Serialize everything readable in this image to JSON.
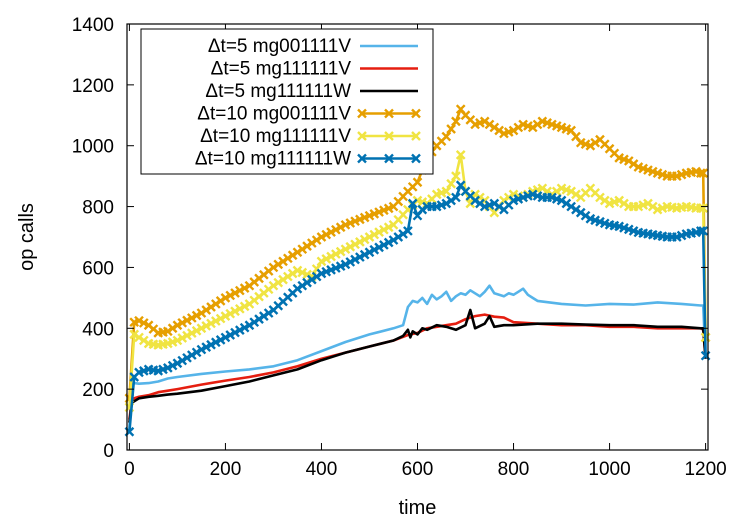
{
  "chart_data": {
    "type": "line",
    "title": "",
    "xlabel": "time",
    "ylabel": "op calls",
    "xlim": [
      -5,
      1205
    ],
    "ylim": [
      0,
      1400
    ],
    "xticks": [
      0,
      200,
      400,
      600,
      800,
      1000,
      1200
    ],
    "yticks": [
      0,
      200,
      400,
      600,
      800,
      1000,
      1200,
      1400
    ],
    "grid": false,
    "legend_position": "top-left",
    "series": [
      {
        "name": "Δt=5 mg001111V",
        "color": "#56b4e9",
        "marker": "none",
        "x": [
          0,
          2,
          5,
          10,
          20,
          40,
          60,
          80,
          100,
          150,
          200,
          250,
          300,
          350,
          400,
          450,
          500,
          550,
          570,
          580,
          590,
          600,
          610,
          620,
          630,
          640,
          650,
          660,
          670,
          680,
          690,
          700,
          710,
          720,
          730,
          740,
          750,
          760,
          770,
          780,
          790,
          800,
          810,
          820,
          830,
          840,
          850,
          900,
          950,
          1000,
          1050,
          1100,
          1150,
          1190,
          1195,
          1200
        ],
        "y": [
          70,
          120,
          215,
          220,
          218,
          220,
          225,
          235,
          240,
          250,
          258,
          265,
          275,
          295,
          325,
          355,
          380,
          400,
          410,
          470,
          490,
          485,
          500,
          480,
          510,
          495,
          505,
          520,
          490,
          505,
          515,
          510,
          525,
          515,
          505,
          520,
          540,
          515,
          510,
          505,
          515,
          510,
          520,
          530,
          510,
          500,
          490,
          480,
          475,
          480,
          478,
          485,
          480,
          475,
          475,
          300
        ]
      },
      {
        "name": "Δt=5 mg111111V",
        "color": "#e51e10",
        "marker": "none",
        "x": [
          0,
          5,
          10,
          20,
          40,
          60,
          80,
          100,
          150,
          200,
          250,
          300,
          350,
          400,
          450,
          500,
          550,
          580,
          600,
          620,
          640,
          660,
          680,
          700,
          720,
          740,
          760,
          780,
          800,
          850,
          900,
          950,
          1000,
          1050,
          1100,
          1150,
          1190,
          1195,
          1200
        ],
        "y": [
          100,
          160,
          170,
          175,
          180,
          190,
          195,
          200,
          215,
          228,
          240,
          255,
          275,
          300,
          320,
          340,
          360,
          378,
          385,
          400,
          405,
          410,
          415,
          430,
          440,
          445,
          438,
          435,
          420,
          415,
          410,
          410,
          405,
          405,
          400,
          400,
          400,
          395,
          300
        ]
      },
      {
        "name": "Δt=5 mg111111W",
        "color": "#000000",
        "marker": "none",
        "x": [
          0,
          5,
          10,
          20,
          40,
          60,
          80,
          100,
          150,
          200,
          250,
          300,
          350,
          400,
          450,
          500,
          550,
          570,
          580,
          585,
          590,
          600,
          610,
          620,
          640,
          660,
          680,
          700,
          710,
          720,
          740,
          750,
          760,
          780,
          800,
          850,
          900,
          950,
          1000,
          1050,
          1100,
          1150,
          1190,
          1195,
          1200
        ],
        "y": [
          90,
          155,
          160,
          170,
          175,
          178,
          182,
          185,
          195,
          210,
          225,
          245,
          265,
          295,
          320,
          340,
          360,
          375,
          395,
          370,
          390,
          380,
          400,
          395,
          410,
          405,
          395,
          410,
          460,
          400,
          415,
          440,
          405,
          410,
          410,
          415,
          415,
          412,
          410,
          410,
          405,
          405,
          400,
          400,
          300
        ]
      },
      {
        "name": "Δt=10 mg001111V",
        "color": "#e69f00",
        "marker": "x",
        "x": [
          0,
          10,
          20,
          40,
          60,
          80,
          100,
          150,
          200,
          250,
          300,
          350,
          400,
          450,
          500,
          550,
          580,
          600,
          620,
          640,
          660,
          680,
          690,
          700,
          720,
          740,
          760,
          780,
          800,
          820,
          840,
          860,
          880,
          900,
          920,
          940,
          960,
          980,
          1000,
          1020,
          1040,
          1060,
          1080,
          1100,
          1120,
          1140,
          1160,
          1180,
          1190,
          1195,
          1200
        ],
        "y": [
          170,
          420,
          425,
          410,
          385,
          390,
          410,
          450,
          500,
          540,
          600,
          650,
          700,
          740,
          770,
          800,
          850,
          880,
          960,
          1000,
          1030,
          1080,
          1120,
          1100,
          1070,
          1080,
          1060,
          1040,
          1050,
          1070,
          1060,
          1080,
          1070,
          1060,
          1050,
          1010,
          1000,
          1020,
          990,
          960,
          950,
          930,
          920,
          910,
          900,
          900,
          910,
          915,
          910,
          910,
          370
        ]
      },
      {
        "name": "Δt=10 mg111111V",
        "color": "#f0e442",
        "marker": "x",
        "x": [
          0,
          10,
          20,
          40,
          60,
          80,
          100,
          150,
          200,
          250,
          300,
          350,
          380,
          400,
          450,
          500,
          550,
          580,
          600,
          620,
          640,
          660,
          680,
          690,
          700,
          710,
          720,
          740,
          760,
          780,
          800,
          820,
          840,
          860,
          880,
          900,
          920,
          940,
          960,
          980,
          1000,
          1020,
          1040,
          1060,
          1080,
          1100,
          1120,
          1140,
          1160,
          1180,
          1190,
          1195,
          1200
        ],
        "y": [
          140,
          380,
          370,
          350,
          345,
          350,
          360,
          400,
          440,
          480,
          540,
          590,
          570,
          620,
          660,
          700,
          740,
          790,
          820,
          810,
          840,
          850,
          900,
          970,
          850,
          810,
          840,
          820,
          780,
          820,
          840,
          830,
          850,
          860,
          840,
          860,
          850,
          830,
          860,
          830,
          810,
          820,
          800,
          800,
          810,
          790,
          800,
          795,
          800,
          795,
          795,
          795,
          370
        ]
      },
      {
        "name": "Δt=10 mg111111W",
        "color": "#0072b2",
        "marker": "x",
        "x": [
          0,
          10,
          20,
          40,
          60,
          80,
          100,
          150,
          200,
          250,
          300,
          350,
          400,
          450,
          500,
          550,
          580,
          590,
          600,
          610,
          620,
          640,
          660,
          680,
          690,
          700,
          720,
          740,
          760,
          780,
          800,
          820,
          840,
          860,
          880,
          900,
          920,
          940,
          960,
          980,
          1000,
          1020,
          1040,
          1060,
          1080,
          1100,
          1120,
          1140,
          1160,
          1180,
          1190,
          1195,
          1200
        ],
        "y": [
          60,
          240,
          255,
          265,
          260,
          270,
          285,
          330,
          370,
          410,
          460,
          530,
          580,
          610,
          650,
          690,
          720,
          810,
          770,
          790,
          800,
          800,
          810,
          830,
          870,
          850,
          820,
          800,
          810,
          790,
          820,
          830,
          840,
          830,
          830,
          820,
          800,
          780,
          760,
          750,
          740,
          735,
          725,
          715,
          710,
          705,
          700,
          700,
          710,
          715,
          720,
          720,
          310
        ]
      }
    ]
  }
}
